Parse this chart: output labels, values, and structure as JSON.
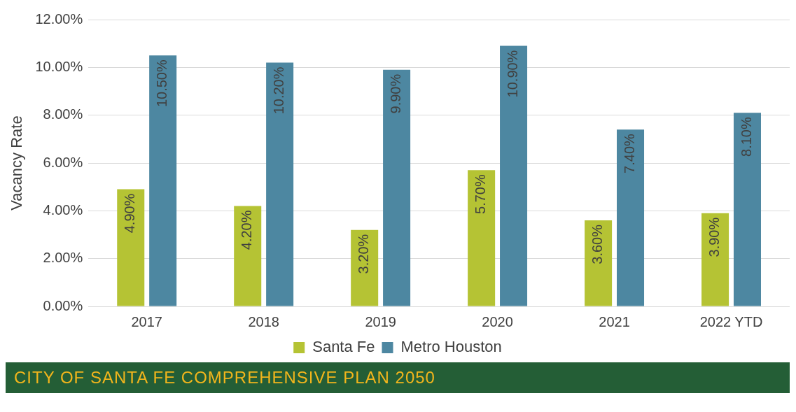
{
  "chart_data": {
    "type": "bar",
    "ylabel": "Vacancy Rate",
    "categories": [
      "2017",
      "2018",
      "2019",
      "2020",
      "2021",
      "2022 YTD"
    ],
    "series": [
      {
        "name": "Santa Fe",
        "color": "#b5c334",
        "values": [
          4.9,
          4.2,
          3.2,
          5.7,
          3.6,
          3.9
        ],
        "value_labels": [
          "4.90%",
          "4.20%",
          "3.20%",
          "5.70%",
          "3.60%",
          "3.90%"
        ]
      },
      {
        "name": "Metro Houston",
        "color": "#4d87a1",
        "values": [
          10.5,
          10.2,
          9.9,
          10.9,
          7.4,
          8.1
        ],
        "value_labels": [
          "10.50%",
          "10.20%",
          "9.90%",
          "10.90%",
          "7.40%",
          "8.10%"
        ]
      }
    ],
    "ylim": [
      0,
      12
    ],
    "yticks": [
      {
        "value": 0,
        "label": "0.00%"
      },
      {
        "value": 2,
        "label": "2.00%"
      },
      {
        "value": 4,
        "label": "4.00%"
      },
      {
        "value": 6,
        "label": "6.00%"
      },
      {
        "value": 8,
        "label": "8.00%"
      },
      {
        "value": 10,
        "label": "10.00%"
      },
      {
        "value": 12,
        "label": "12.00%"
      }
    ],
    "grid": "y",
    "legend": "bottom",
    "annotations": [
      "CITY OF SANTA FE COMPREHENSIVE PLAN 2050"
    ]
  }
}
